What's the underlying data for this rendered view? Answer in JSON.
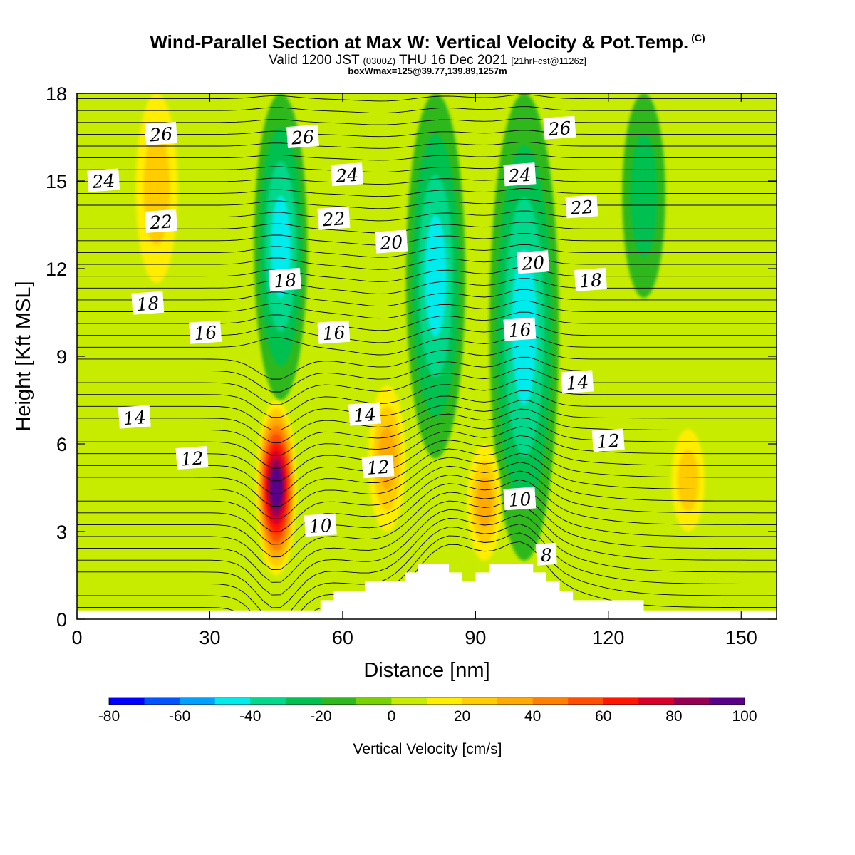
{
  "titles": {
    "main": "Wind-Parallel Section at Max W: Vertical Velocity & Pot.Temp.",
    "copyright": "(C)",
    "valid_prefix": "Valid 1200 JST",
    "valid_utc": "(0300Z)",
    "valid_date": "THU 16 Dec 2021",
    "valid_fcst": "[21hrFcst@1126z]",
    "box": "boxWmax=125@39.77,139.89,1257m"
  },
  "chart_data": {
    "type": "heatmap",
    "title": "Wind-Parallel Section at Max W: Vertical Velocity & Pot.Temp.",
    "xlabel": "Distance [nm]",
    "ylabel": "Height [Kft MSL]",
    "xlim": [
      0,
      158
    ],
    "ylim": [
      0,
      18
    ],
    "x_ticks": [
      0,
      30,
      60,
      90,
      120,
      150
    ],
    "y_ticks": [
      0,
      3,
      6,
      9,
      12,
      15,
      18
    ],
    "colorbar": {
      "label": "Vertical Velocity [cm/s]",
      "levels": [
        -80,
        -70,
        -60,
        -50,
        -40,
        -30,
        -20,
        -10,
        0,
        10,
        20,
        30,
        40,
        50,
        60,
        70,
        80,
        90,
        100
      ],
      "tick_labels": [
        -80,
        -60,
        -40,
        -20,
        0,
        20,
        40,
        60,
        80,
        100
      ],
      "colors": [
        "#0000ff",
        "#0055ff",
        "#00a0ff",
        "#00ecec",
        "#00d88c",
        "#00c050",
        "#2db81d",
        "#78d200",
        "#c8ec00",
        "#ffee00",
        "#ffcc00",
        "#ffaa00",
        "#ff7f00",
        "#ff4e00",
        "#ff1800",
        "#d8002a",
        "#960052",
        "#580088"
      ]
    },
    "vertical_velocity_features": [
      {
        "x": 45,
        "y_range": [
          1.5,
          7.5
        ],
        "peak_cm_s": 100,
        "sign": "updraft"
      },
      {
        "x": 46,
        "y_range": [
          7.5,
          18
        ],
        "peak_cm_s": -40,
        "sign": "downdraft"
      },
      {
        "x": 81,
        "y_range": [
          5.5,
          18
        ],
        "peak_cm_s": -40,
        "sign": "downdraft"
      },
      {
        "x": 101,
        "y_range": [
          2,
          18
        ],
        "peak_cm_s": -40,
        "sign": "downdraft"
      },
      {
        "x": 70,
        "y_range": [
          3,
          8
        ],
        "peak_cm_s": 30,
        "sign": "updraft"
      },
      {
        "x": 92,
        "y_range": [
          2,
          6
        ],
        "peak_cm_s": 30,
        "sign": "updraft"
      },
      {
        "x": 138,
        "y_range": [
          3,
          6.5
        ],
        "peak_cm_s": 20,
        "sign": "updraft"
      },
      {
        "x": 18,
        "y_range": [
          11.5,
          18
        ],
        "peak_cm_s": 20,
        "sign": "updraft"
      },
      {
        "x": 128,
        "y_range": [
          11,
          18
        ],
        "peak_cm_s": -20,
        "sign": "downdraft"
      }
    ],
    "potential_temperature_labels": [
      {
        "value": "26",
        "x": 19,
        "y": 16.6
      },
      {
        "value": "26",
        "x": 51,
        "y": 16.5
      },
      {
        "value": "26",
        "x": 109,
        "y": 16.8
      },
      {
        "value": "24",
        "x": 6,
        "y": 15.0
      },
      {
        "value": "24",
        "x": 61,
        "y": 15.2
      },
      {
        "value": "24",
        "x": 100,
        "y": 15.2
      },
      {
        "value": "22",
        "x": 19,
        "y": 13.6
      },
      {
        "value": "22",
        "x": 58,
        "y": 13.7
      },
      {
        "value": "22",
        "x": 114,
        "y": 14.1
      },
      {
        "value": "20",
        "x": 71,
        "y": 12.9
      },
      {
        "value": "20",
        "x": 103,
        "y": 12.2
      },
      {
        "value": "18",
        "x": 16,
        "y": 10.8
      },
      {
        "value": "18",
        "x": 47,
        "y": 11.6
      },
      {
        "value": "18",
        "x": 116,
        "y": 11.6
      },
      {
        "value": "16",
        "x": 29,
        "y": 9.8
      },
      {
        "value": "16",
        "x": 58,
        "y": 9.8
      },
      {
        "value": "16",
        "x": 100,
        "y": 9.9
      },
      {
        "value": "14",
        "x": 13,
        "y": 6.9
      },
      {
        "value": "14",
        "x": 65,
        "y": 7.0
      },
      {
        "value": "14",
        "x": 113,
        "y": 8.1
      },
      {
        "value": "12",
        "x": 26,
        "y": 5.5
      },
      {
        "value": "12",
        "x": 68,
        "y": 5.2
      },
      {
        "value": "12",
        "x": 120,
        "y": 6.1
      },
      {
        "value": "10",
        "x": 55,
        "y": 3.2
      },
      {
        "value": "10",
        "x": 100,
        "y": 4.1
      },
      {
        "value": "8",
        "x": 106,
        "y": 2.2
      }
    ],
    "terrain": [
      [
        0,
        0.3
      ],
      [
        55,
        0.3
      ],
      [
        55,
        0.65
      ],
      [
        58,
        0.65
      ],
      [
        58,
        0.95
      ],
      [
        65,
        0.95
      ],
      [
        65,
        1.3
      ],
      [
        74,
        1.3
      ],
      [
        74,
        1.6
      ],
      [
        77,
        1.6
      ],
      [
        77,
        1.9
      ],
      [
        84,
        1.9
      ],
      [
        84,
        1.6
      ],
      [
        87,
        1.6
      ],
      [
        87,
        1.3
      ],
      [
        90,
        1.3
      ],
      [
        90,
        1.6
      ],
      [
        93,
        1.6
      ],
      [
        93,
        1.9
      ],
      [
        103,
        1.9
      ],
      [
        103,
        1.6
      ],
      [
        106,
        1.6
      ],
      [
        106,
        1.3
      ],
      [
        109,
        1.3
      ],
      [
        109,
        0.95
      ],
      [
        112,
        0.95
      ],
      [
        112,
        0.65
      ],
      [
        128,
        0.65
      ],
      [
        128,
        0.3
      ],
      [
        158,
        0.3
      ]
    ]
  }
}
